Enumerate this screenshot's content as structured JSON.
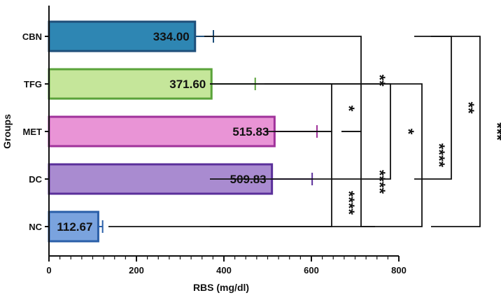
{
  "chart_data": {
    "type": "bar",
    "orientation": "horizontal",
    "title": "",
    "xlabel": "RBS (mg/dl)",
    "ylabel": "Groups",
    "xlim": [
      0,
      800
    ],
    "x_ticks": [
      0,
      200,
      400,
      600,
      800
    ],
    "grid": false,
    "categories": [
      "CBN",
      "TFG",
      "MET",
      "DC",
      "NC"
    ],
    "values": [
      334.0,
      371.6,
      515.83,
      509.83,
      112.67
    ],
    "value_labels": [
      "334.00",
      "371.60",
      "515.83",
      "509.83",
      "112.67"
    ],
    "errors": [
      42,
      100,
      97,
      92,
      10
    ],
    "colors": {
      "CBN": {
        "fill": "#2e86b3",
        "stroke": "#1f4f7a"
      },
      "TFG": {
        "fill": "#c5e69a",
        "stroke": "#5aa33a"
      },
      "MET": {
        "fill": "#e994d6",
        "stroke": "#a0329b"
      },
      "DC": {
        "fill": "#a98bd0",
        "stroke": "#5a2f9a"
      },
      "NC": {
        "fill": "#7aa3de",
        "stroke": "#2a5fa8"
      }
    },
    "significance": [
      {
        "from": "TFG",
        "to": "MET",
        "label": "*"
      },
      {
        "from": "MET",
        "to": "NC",
        "label": "****"
      },
      {
        "from": "CBN",
        "to": "MET",
        "label": "**"
      },
      {
        "from": "MET",
        "to": "NC",
        "label": "****"
      },
      {
        "from": "TFG",
        "to": "DC",
        "label": "*"
      },
      {
        "from": "TFG",
        "to": "NC",
        "label": "****"
      },
      {
        "from": "CBN",
        "to": "DC",
        "label": "**"
      },
      {
        "from": "CBN",
        "to": "NC",
        "label": "***"
      }
    ]
  }
}
